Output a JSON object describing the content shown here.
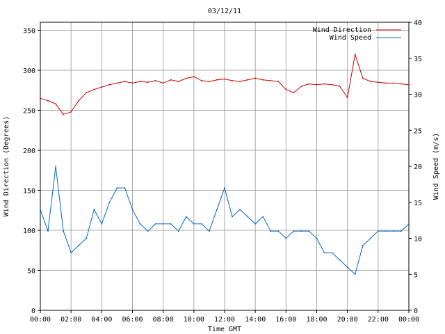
{
  "chart_data": {
    "type": "line",
    "title": "03/12/11",
    "xlabel": "Time GMT",
    "ylabel_left": "Wind Direction (Degrees)",
    "ylabel_right": "Wind Speed (m/s)",
    "x_tick_labels": [
      "00:00",
      "02:00",
      "04:00",
      "06:00",
      "08:00",
      "10:00",
      "12:00",
      "14:00",
      "16:00",
      "18:00",
      "20:00",
      "22:00",
      "00:00"
    ],
    "y_left_ticks": [
      0,
      50,
      100,
      150,
      200,
      250,
      300,
      350
    ],
    "y_right_ticks": [
      0,
      5,
      10,
      15,
      20,
      25,
      30,
      35,
      40
    ],
    "y_left_range": [
      0,
      360
    ],
    "y_right_range": [
      0,
      40
    ],
    "x_range_hours": [
      0,
      24
    ],
    "grid": true,
    "legend_position": "top-right",
    "series": [
      {
        "name": "Wind Direction",
        "axis": "left",
        "color": "#cc0000",
        "x": [
          0,
          0.5,
          1,
          1.5,
          2,
          2.5,
          3,
          3.5,
          4,
          4.5,
          5,
          5.5,
          6,
          6.5,
          7,
          7.5,
          8,
          8.5,
          9,
          9.5,
          10,
          10.5,
          11,
          11.5,
          12,
          12.5,
          13,
          13.5,
          14,
          14.5,
          15,
          15.5,
          16,
          16.5,
          17,
          17.5,
          18,
          18.5,
          19,
          19.5,
          20,
          20.5,
          21,
          21.5,
          22,
          22.5,
          23,
          23.5,
          24
        ],
        "values": [
          265,
          262,
          258,
          245,
          248,
          262,
          272,
          276,
          279,
          282,
          284,
          286,
          284,
          286,
          285,
          287,
          284,
          288,
          286,
          290,
          292,
          287,
          286,
          288,
          289,
          287,
          286,
          288,
          290,
          288,
          287,
          286,
          276,
          272,
          280,
          283,
          282,
          283,
          282,
          280,
          266,
          320,
          290,
          286,
          285,
          284,
          284,
          283,
          282
        ]
      },
      {
        "name": "Wind Speed",
        "axis": "right",
        "color": "#0066cc",
        "x": [
          0,
          0.5,
          1,
          1.5,
          2,
          2.5,
          3,
          3.5,
          4,
          4.5,
          5,
          5.5,
          6,
          6.5,
          7,
          7.5,
          8,
          8.5,
          9,
          9.5,
          10,
          10.5,
          11,
          11.5,
          12,
          12.5,
          13,
          13.5,
          14,
          14.5,
          15,
          15.5,
          16,
          16.5,
          17,
          17.5,
          18,
          18.5,
          19,
          19.5,
          20,
          20.5,
          21,
          21.5,
          22,
          22.5,
          23,
          23.5,
          24
        ],
        "values": [
          14,
          11,
          20,
          11,
          8,
          9,
          10,
          14,
          12,
          15,
          17,
          17,
          14,
          12,
          11,
          12,
          12,
          12,
          11,
          13,
          12,
          12,
          11,
          14,
          17,
          13,
          14,
          13,
          12,
          13,
          11,
          11,
          10,
          11,
          11,
          11,
          10,
          8,
          8,
          7,
          6,
          5,
          9,
          10,
          11,
          11,
          11,
          11,
          12
        ]
      }
    ]
  }
}
